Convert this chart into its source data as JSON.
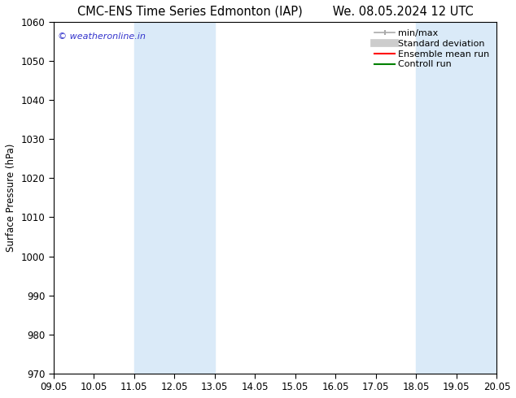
{
  "title_left": "CMC-ENS Time Series Edmonton (IAP)",
  "title_right": "We. 08.05.2024 12 UTC",
  "ylabel": "Surface Pressure (hPa)",
  "ylim": [
    970,
    1060
  ],
  "yticks": [
    970,
    980,
    990,
    1000,
    1010,
    1020,
    1030,
    1040,
    1050,
    1060
  ],
  "xtick_labels": [
    "09.05",
    "10.05",
    "11.05",
    "12.05",
    "13.05",
    "14.05",
    "15.05",
    "16.05",
    "17.05",
    "18.05",
    "19.05",
    "20.05"
  ],
  "xtick_positions": [
    0,
    1,
    2,
    3,
    4,
    5,
    6,
    7,
    8,
    9,
    10,
    11
  ],
  "shaded_regions": [
    {
      "x_start": 2,
      "x_end": 4,
      "color": "#daeaf8"
    },
    {
      "x_start": 9,
      "x_end": 11,
      "color": "#daeaf8"
    }
  ],
  "watermark_text": "© weatheronline.in",
  "watermark_color": "#3333cc",
  "legend_entries": [
    {
      "label": "min/max",
      "color": "#aaaaaa",
      "linestyle": "-",
      "linewidth": 1.2
    },
    {
      "label": "Standard deviation",
      "color": "#cccccc",
      "linestyle": "-",
      "linewidth": 7
    },
    {
      "label": "Ensemble mean run",
      "color": "red",
      "linestyle": "-",
      "linewidth": 1.5
    },
    {
      "label": "Controll run",
      "color": "green",
      "linestyle": "-",
      "linewidth": 1.5
    }
  ],
  "background_color": "#ffffff",
  "spine_color": "#000000",
  "title_fontsize": 10.5,
  "axis_fontsize": 8.5,
  "tick_fontsize": 8.5,
  "legend_fontsize": 8
}
